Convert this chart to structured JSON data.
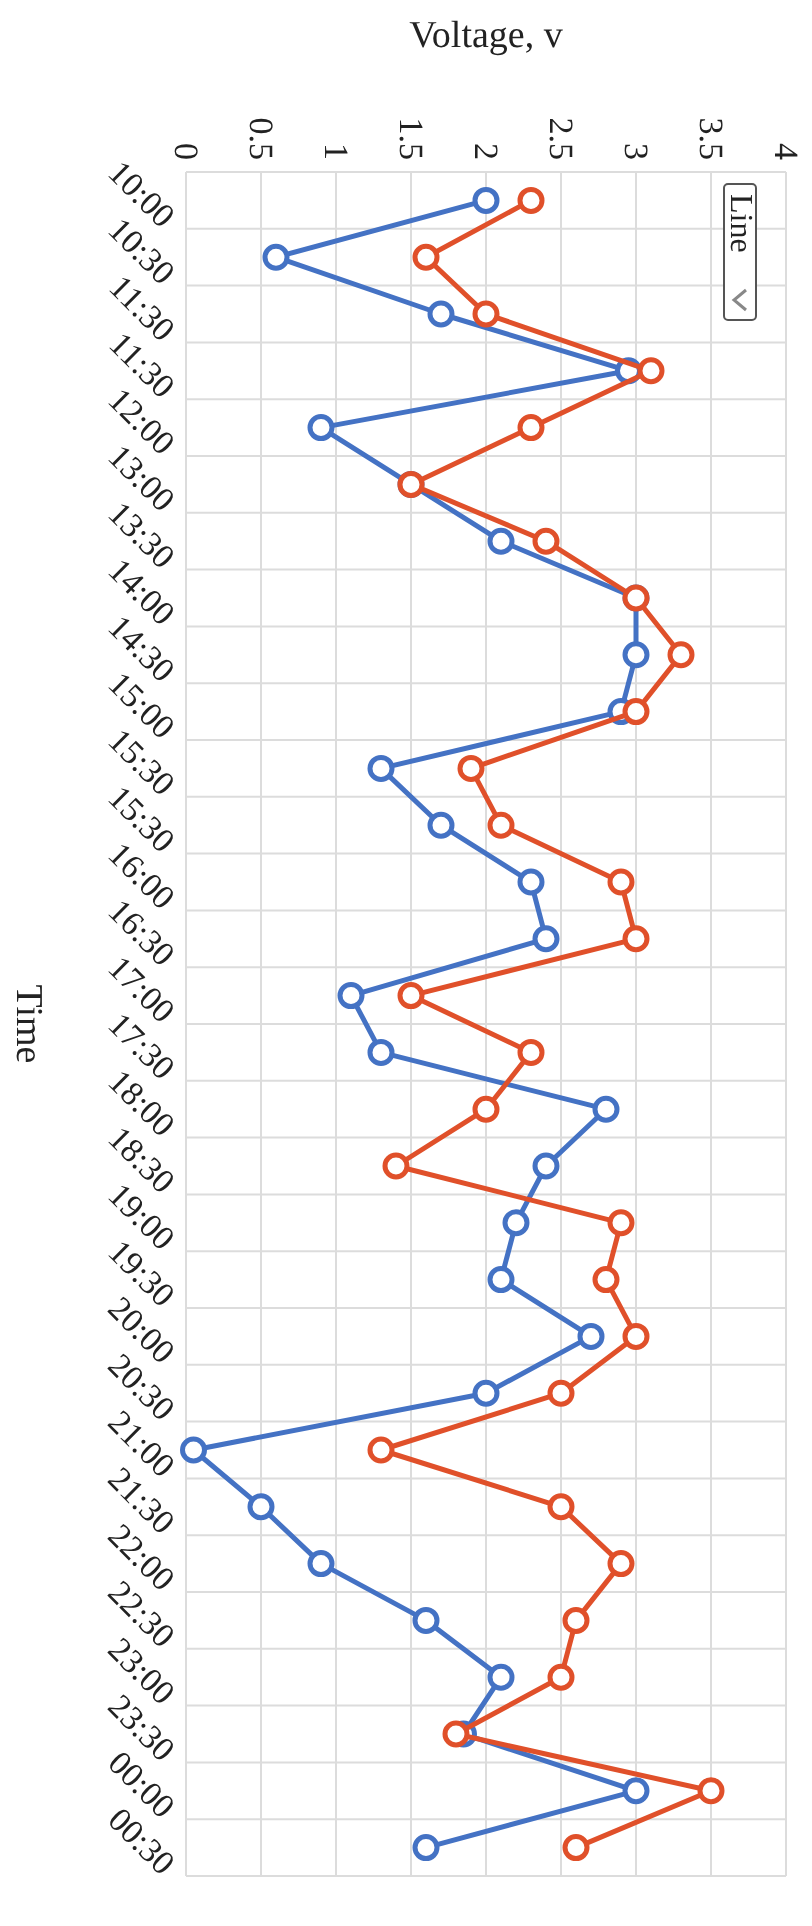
{
  "chart_data": {
    "type": "line",
    "orientation": "horizontal",
    "xlabel": "Voltage, v",
    "ylabel": "Time",
    "categories": [
      "10:00",
      "10:30",
      "11:30",
      "11:30",
      "12:00",
      "13:00",
      "13:30",
      "14:00",
      "14:30",
      "15:00",
      "15:30",
      "15:30",
      "16:00",
      "16:30",
      "17:00",
      "17:30",
      "18:00",
      "18:30",
      "19:00",
      "19:30",
      "20:00",
      "20:30",
      "21:00",
      "21:30",
      "22:00",
      "22:30",
      "23:00",
      "23:30",
      "00:00",
      "00:30"
    ],
    "series": [
      {
        "color": "#4472c4",
        "values": [
          2.0,
          0.6,
          1.7,
          2.95,
          0.9,
          1.5,
          2.1,
          3.0,
          3.0,
          2.9,
          1.3,
          1.7,
          2.3,
          2.4,
          1.1,
          1.3,
          2.8,
          2.4,
          2.2,
          2.1,
          2.7,
          2.0,
          0.05,
          0.5,
          0.9,
          1.6,
          2.1,
          1.85,
          3.0,
          1.6
        ]
      },
      {
        "color": "#e0502a",
        "values": [
          2.3,
          1.6,
          2.0,
          3.1,
          2.3,
          1.5,
          2.4,
          3.0,
          3.3,
          3.0,
          1.9,
          2.1,
          2.9,
          3.0,
          1.5,
          2.3,
          2.0,
          1.4,
          2.9,
          2.8,
          3.0,
          2.5,
          1.3,
          2.5,
          2.9,
          2.6,
          2.5,
          1.8,
          3.5,
          2.6
        ]
      }
    ],
    "xlim": [
      0,
      4
    ],
    "xticks": [
      0,
      0.5,
      1,
      1.5,
      2,
      2.5,
      3,
      3.5,
      4
    ],
    "grid": true,
    "marker": "circle",
    "line_style": "solid",
    "annotations": [
      "Line"
    ]
  }
}
